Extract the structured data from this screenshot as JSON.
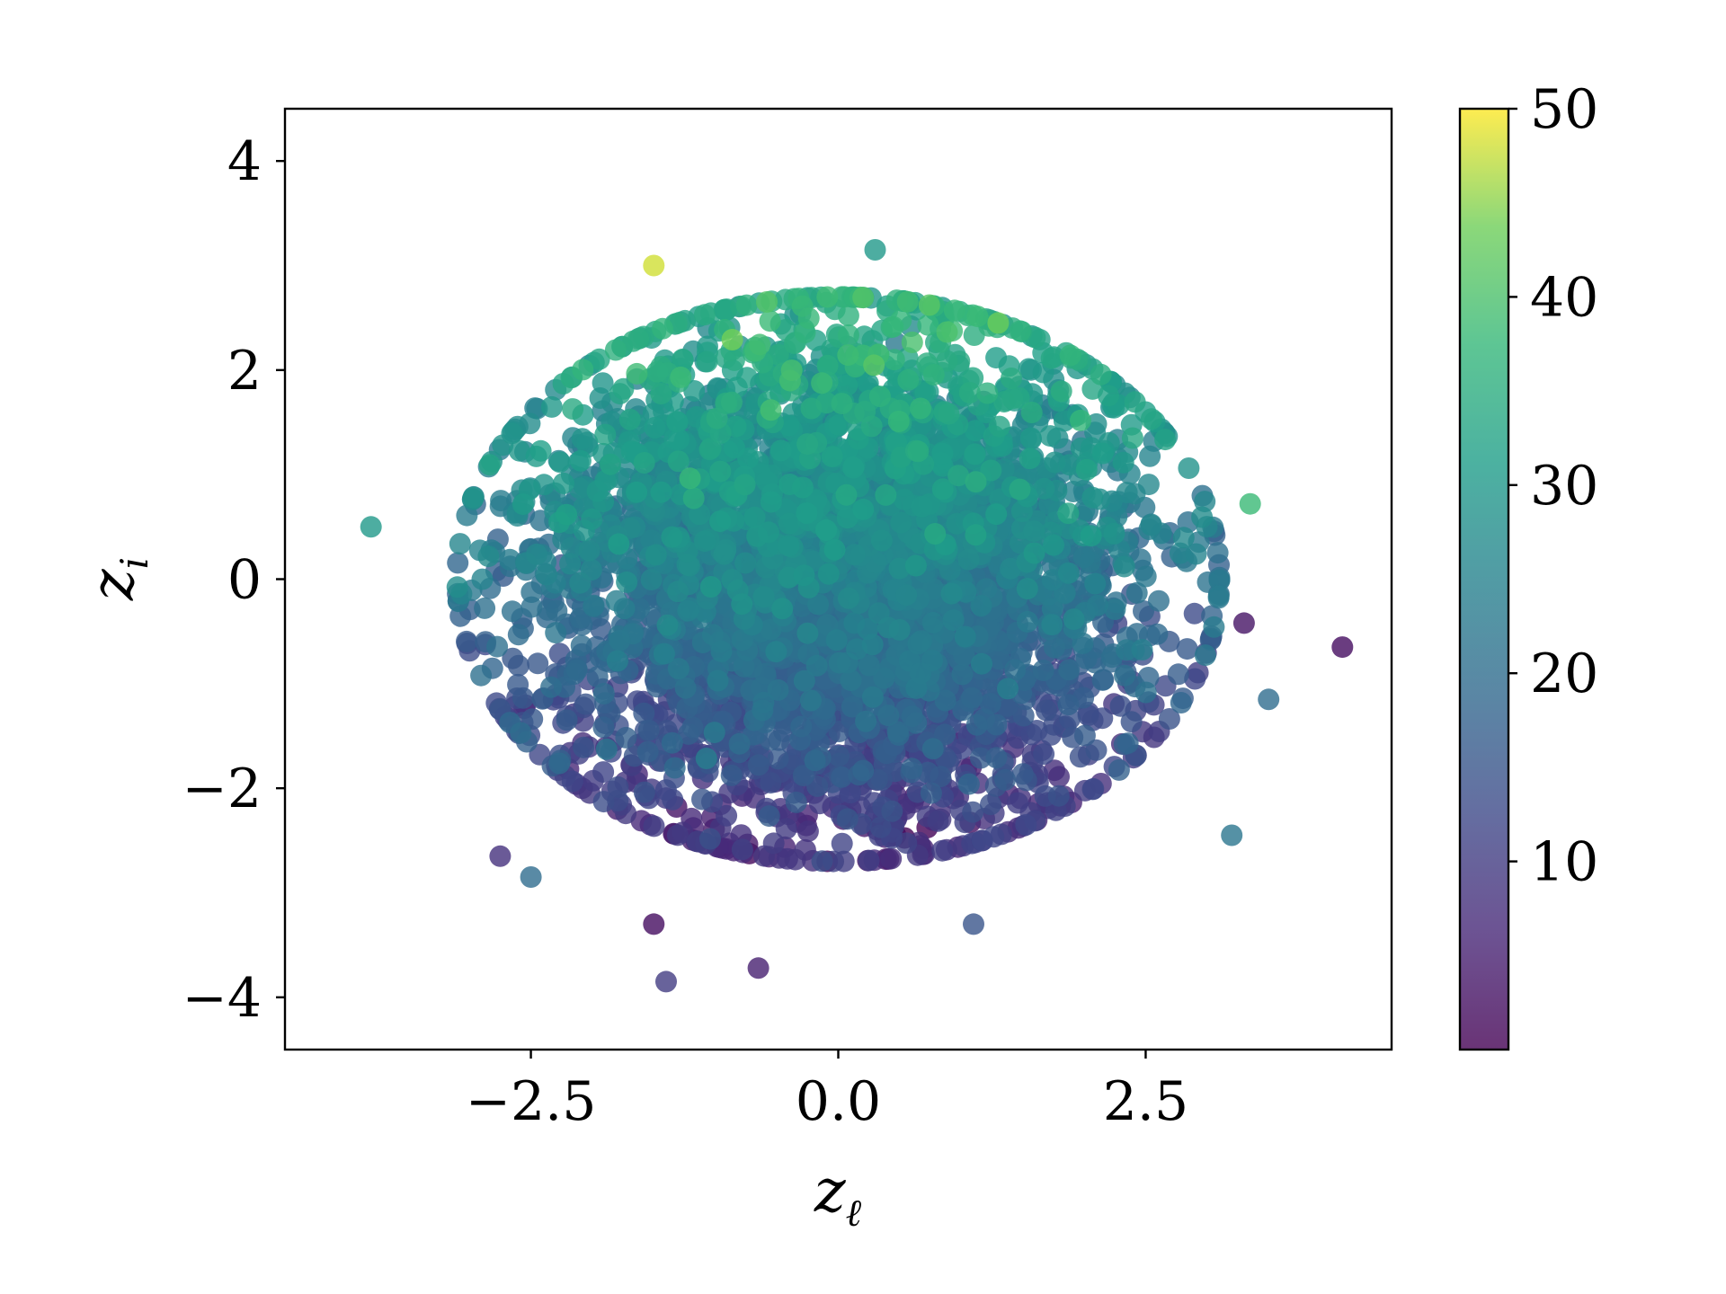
{
  "chart_data": {
    "type": "scatter",
    "title": "",
    "xlabel_main": "z",
    "xlabel_sub": "ℓ",
    "ylabel_main": "z",
    "ylabel_sub": "i",
    "xlim": [
      -4.5,
      4.5
    ],
    "ylim": [
      -4.5,
      4.5
    ],
    "xticks": [
      -2.5,
      0.0,
      2.5
    ],
    "xtick_labels": [
      "−2.5",
      "0.0",
      "2.5"
    ],
    "yticks": [
      -4,
      -2,
      0,
      2,
      4
    ],
    "ytick_labels": [
      "−4",
      "−2",
      "0",
      "2",
      "4"
    ],
    "grid": false,
    "legend": "none",
    "colorbar": {
      "colormap": "viridis",
      "range": [
        0,
        50
      ],
      "ticks": [
        10,
        20,
        30,
        40,
        50
      ],
      "tick_labels": [
        "10",
        "20",
        "30",
        "40",
        "50"
      ]
    },
    "marker_alpha": 0.8,
    "outliers": [
      {
        "x": -3.8,
        "y": 0.5,
        "c": 30
      },
      {
        "x": 4.1,
        "y": -0.65,
        "c": 2
      },
      {
        "x": 3.5,
        "y": -1.15,
        "c": 20
      },
      {
        "x": 3.3,
        "y": -0.42,
        "c": 3
      },
      {
        "x": 3.35,
        "y": 0.72,
        "c": 38
      },
      {
        "x": -1.5,
        "y": 3.0,
        "c": 48
      },
      {
        "x": 0.3,
        "y": 3.15,
        "c": 30
      },
      {
        "x": -1.4,
        "y": -3.85,
        "c": 10
      },
      {
        "x": -0.65,
        "y": -3.72,
        "c": 5
      },
      {
        "x": 3.2,
        "y": -2.45,
        "c": 22
      },
      {
        "x": -2.75,
        "y": -2.65,
        "c": 8
      },
      {
        "x": -2.5,
        "y": -2.85,
        "c": 20
      },
      {
        "x": -1.5,
        "y": -3.3,
        "c": 2
      },
      {
        "x": 1.1,
        "y": -3.3,
        "c": 15
      }
    ]
  }
}
